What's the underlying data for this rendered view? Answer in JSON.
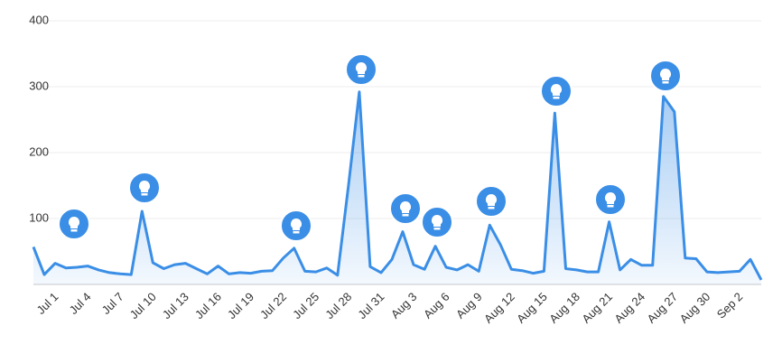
{
  "chart_data": {
    "type": "area",
    "categories": [
      "Jul 1",
      null,
      null,
      "Jul 4",
      null,
      null,
      "Jul 7",
      null,
      null,
      "Jul 10",
      null,
      null,
      "Jul 13",
      null,
      null,
      "Jul 16",
      null,
      null,
      "Jul 19",
      null,
      null,
      "Jul 22",
      null,
      null,
      "Jul 25",
      null,
      null,
      "Jul 28",
      null,
      null,
      "Jul 31",
      null,
      null,
      "Aug 3",
      null,
      null,
      "Aug 6",
      null,
      null,
      "Aug 9",
      null,
      null,
      "Aug 12",
      null,
      null,
      "Aug 15",
      null,
      null,
      "Aug 18",
      null,
      null,
      "Aug 21",
      null,
      null,
      "Aug 24",
      null,
      null,
      "Aug 27",
      null,
      null,
      "Aug 30",
      null,
      null,
      "Sep 2",
      null,
      null,
      null,
      null
    ],
    "values": [
      57,
      15,
      32,
      25,
      26,
      28,
      22,
      18,
      16,
      15,
      111,
      33,
      24,
      30,
      32,
      24,
      16,
      28,
      16,
      18,
      17,
      20,
      21,
      40,
      55,
      20,
      19,
      25,
      14,
      150,
      292,
      27,
      18,
      38,
      80,
      30,
      23,
      58,
      26,
      22,
      30,
      20,
      90,
      60,
      23,
      21,
      17,
      20,
      260,
      24,
      22,
      19,
      19,
      95,
      22,
      38,
      29,
      29,
      285,
      262,
      40,
      39,
      19,
      18,
      19,
      20,
      38,
      7
    ],
    "color": "#3a8ee6",
    "ylim": [
      0,
      400
    ],
    "yticks": [
      100,
      200,
      300,
      400
    ],
    "grid": true
  }
}
